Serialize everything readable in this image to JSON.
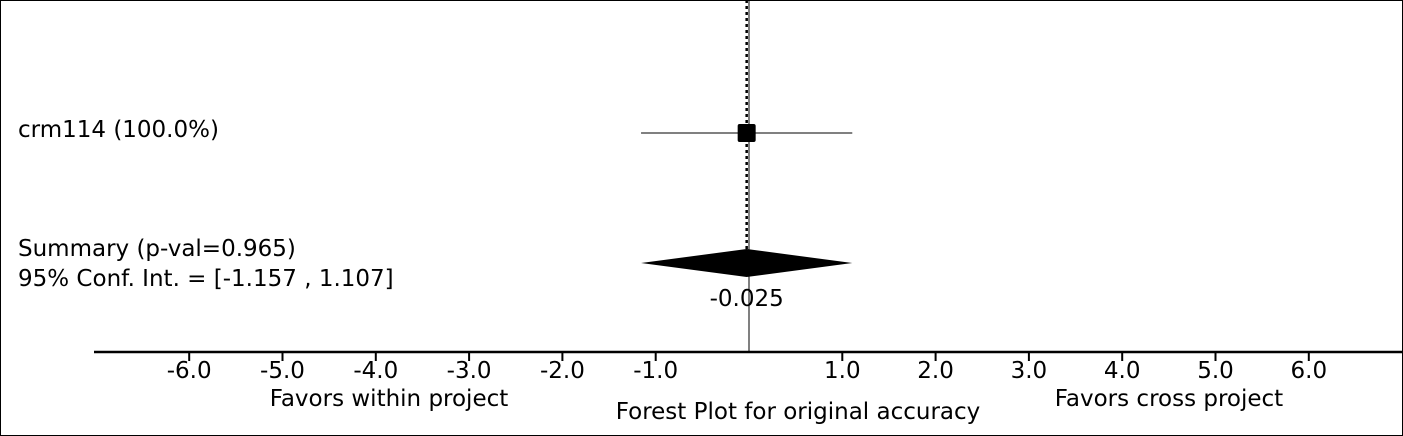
{
  "chart_data": {
    "type": "forest",
    "title": "Forest Plot for original accuracy",
    "xlim": [
      -7.0,
      7.0
    ],
    "xticks": [
      -6.0,
      -5.0,
      -4.0,
      -3.0,
      -2.0,
      -1.0,
      1.0,
      2.0,
      3.0,
      4.0,
      5.0,
      6.0
    ],
    "xtick_labels": [
      "-6.0",
      "-5.0",
      "-4.0",
      "-3.0",
      "-2.0",
      "-1.0",
      "1.0",
      "2.0",
      "3.0",
      "4.0",
      "5.0",
      "6.0"
    ],
    "left_label": "Favors within project",
    "right_label": "Favors cross project",
    "null_line": 0.0,
    "studies": [
      {
        "label": "crm114 (100.0%)",
        "estimate": -0.025,
        "ci_low": -1.157,
        "ci_high": 1.107,
        "weight": 100.0
      }
    ],
    "summary": {
      "label_line1": "Summary (p-val=0.965)",
      "label_line2": "95% Conf. Int. = [-1.157 , 1.107]",
      "estimate": -0.025,
      "estimate_label": "-0.025",
      "ci_low": -1.157,
      "ci_high": 1.107,
      "p_value": 0.965
    }
  }
}
